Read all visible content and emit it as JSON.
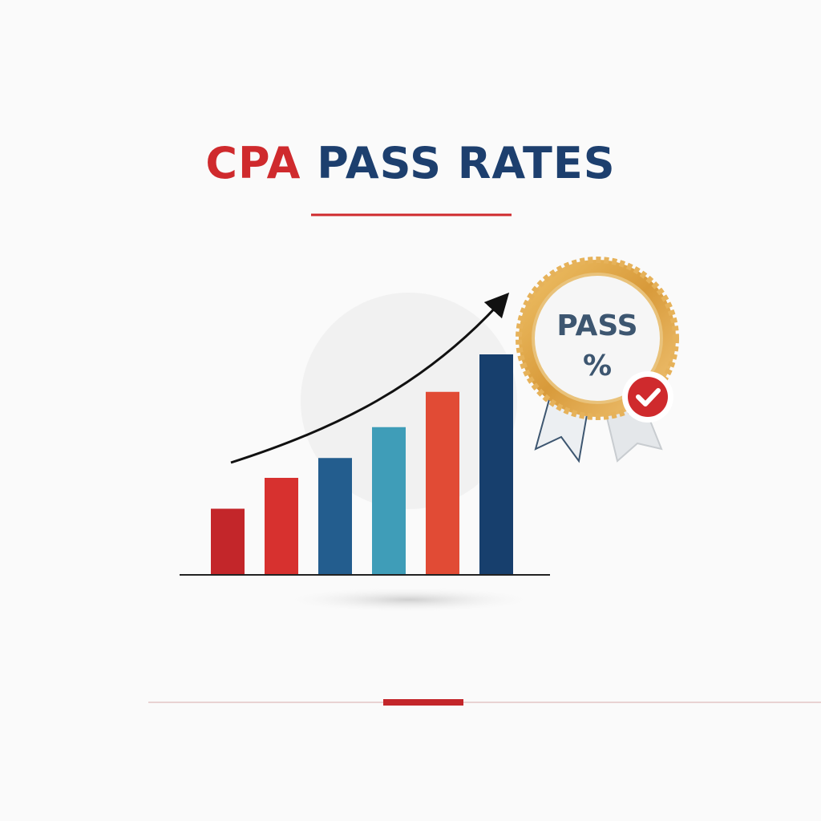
{
  "chart_data": {
    "type": "bar",
    "title": {
      "accent": "CPA",
      "main": "PASS RATES"
    },
    "values": [
      30,
      44,
      53,
      67,
      83,
      100
    ],
    "colors": [
      "#c3262a",
      "#d7312f",
      "#235d8e",
      "#3f9db8",
      "#e14b35",
      "#173f6d"
    ],
    "badge": {
      "line1": "PASS",
      "line2": "%"
    }
  }
}
